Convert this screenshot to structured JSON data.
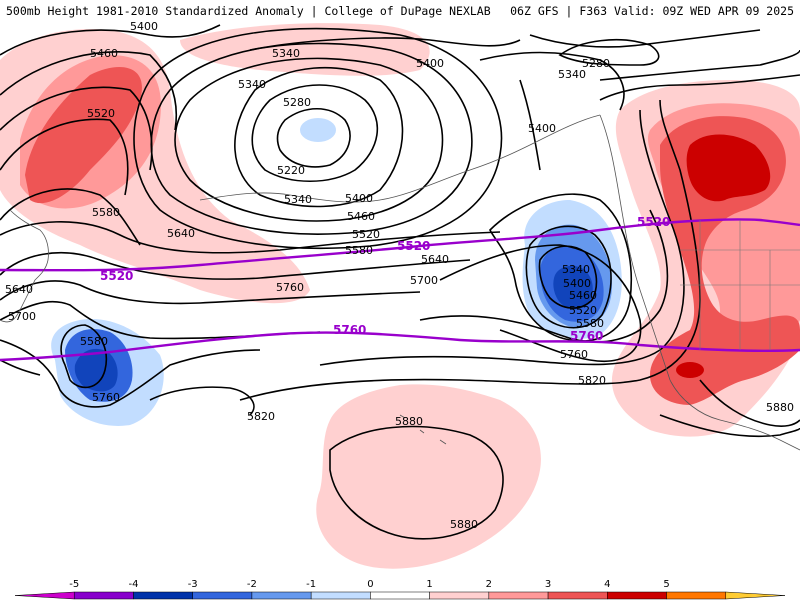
{
  "header": {
    "left_title": "500mb Height 1981-2010 Standardized Anomaly | College of DuPage NEXLAB",
    "right_title": "06Z GFS | F363 Valid: 09Z WED APR 09 2025"
  },
  "map": {
    "layer": "500mb Height",
    "fill_field": "Standardized Anomaly",
    "contour_labels": [
      {
        "id": "c1",
        "text": "5400"
      },
      {
        "id": "c2",
        "text": "5460"
      },
      {
        "id": "c3",
        "text": "5520"
      },
      {
        "id": "c4",
        "text": "5580"
      },
      {
        "id": "c5",
        "text": "5640"
      },
      {
        "id": "c6",
        "text": "5640"
      },
      {
        "id": "c7",
        "text": "5700"
      },
      {
        "id": "c8",
        "text": "5580"
      },
      {
        "id": "c9",
        "text": "5760"
      },
      {
        "id": "c10",
        "text": "5340"
      },
      {
        "id": "c11",
        "text": "5340"
      },
      {
        "id": "c12",
        "text": "5280"
      },
      {
        "id": "c13",
        "text": "5220"
      },
      {
        "id": "c14",
        "text": "5340"
      },
      {
        "id": "c15",
        "text": "5400"
      },
      {
        "id": "c16",
        "text": "5460"
      },
      {
        "id": "c17",
        "text": "5520"
      },
      {
        "id": "c18",
        "text": "5580"
      },
      {
        "id": "c19",
        "text": "5400"
      },
      {
        "id": "c20",
        "text": "5640"
      },
      {
        "id": "c21",
        "text": "5700"
      },
      {
        "id": "c22",
        "text": "5760"
      },
      {
        "id": "c23",
        "text": "5820"
      },
      {
        "id": "c24",
        "text": "5400"
      },
      {
        "id": "c25",
        "text": "5340"
      },
      {
        "id": "c26",
        "text": "5400"
      },
      {
        "id": "c27",
        "text": "5460"
      },
      {
        "id": "c28",
        "text": "5520"
      },
      {
        "id": "c29",
        "text": "5580"
      },
      {
        "id": "c30",
        "text": "5760"
      },
      {
        "id": "c31",
        "text": "5820"
      },
      {
        "id": "c32",
        "text": "5280"
      },
      {
        "id": "c33",
        "text": "5340"
      },
      {
        "id": "c34",
        "text": "5880"
      },
      {
        "id": "c35",
        "text": "5880"
      },
      {
        "id": "c36",
        "text": "5880"
      }
    ],
    "highlight_labels": [
      {
        "id": "p1",
        "text": "5520"
      },
      {
        "id": "p2",
        "text": "5520"
      },
      {
        "id": "p3",
        "text": "5520"
      },
      {
        "id": "p4",
        "text": "5760"
      },
      {
        "id": "p5",
        "text": "5760"
      }
    ]
  },
  "colorbar": {
    "ticks": [
      "-5",
      "-4",
      "-3",
      "-2",
      "-1",
      "0",
      "1",
      "2",
      "3",
      "4",
      "5"
    ],
    "colors": [
      "#cc00cc",
      "#8800cc",
      "#0033aa",
      "#3366dd",
      "#6699ee",
      "#c2ddff",
      "#ffffff",
      "#ffd0d0",
      "#ff9999",
      "#ee5555",
      "#cc0000",
      "#ff7700",
      "#ffcc33"
    ]
  },
  "styles": {
    "positive_anomaly_colors": [
      "#ffd0d0",
      "#ff9999",
      "#ee5555",
      "#cc0000"
    ],
    "negative_anomaly_colors": [
      "#c2ddff",
      "#6699ee",
      "#3366dd",
      "#1144bb"
    ],
    "highlight_contour_color": "#9900cc",
    "contour_color": "#000000"
  }
}
